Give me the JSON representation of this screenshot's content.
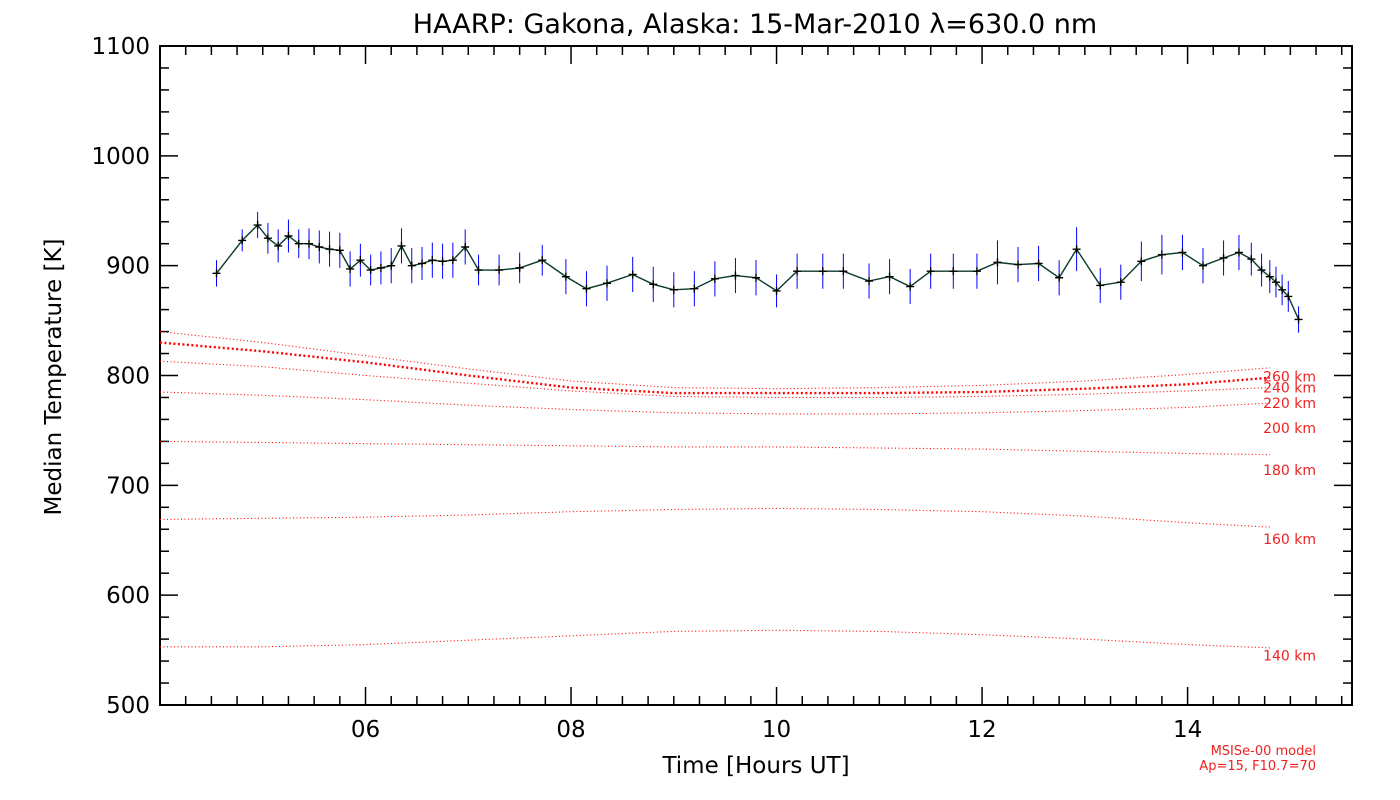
{
  "chart_data": {
    "type": "line",
    "title": "HAARP: Gakona,  Alaska: 15-Mar-2010 λ=630.0 nm",
    "xlabel": "Time [Hours UT]",
    "ylabel": "Median Temperature [K]",
    "xlim": [
      4.0,
      15.6
    ],
    "ylim": [
      500,
      1100
    ],
    "x_ticks": [
      6,
      8,
      10,
      12,
      14
    ],
    "x_tick_labels": [
      "06",
      "08",
      "10",
      "12",
      "14"
    ],
    "y_ticks": [
      500,
      600,
      700,
      800,
      900,
      1000,
      1100
    ],
    "y_tick_labels": [
      "500",
      "600",
      "700",
      "800",
      "900",
      "1000",
      "1100"
    ],
    "grid": false,
    "colors": {
      "observation_line": "#0a3a2a",
      "error_bars": "#0000ff",
      "markers": "#000000",
      "model_lines": "#ff0000",
      "model_text": "#ee2222"
    },
    "series": [
      {
        "kind": "observed",
        "x": [
          4.55,
          4.8,
          4.95,
          5.05,
          5.15,
          5.25,
          5.35,
          5.45,
          5.55,
          5.65,
          5.75,
          5.85,
          5.95,
          6.05,
          6.15,
          6.25,
          6.35,
          6.45,
          6.55,
          6.65,
          6.75,
          6.85,
          6.97,
          7.1,
          7.3,
          7.5,
          7.72,
          7.95,
          8.15,
          8.35,
          8.6,
          8.8,
          9.0,
          9.2,
          9.4,
          9.6,
          9.8,
          10.0,
          10.2,
          10.45,
          10.65,
          10.9,
          11.1,
          11.3,
          11.5,
          11.72,
          11.95,
          12.15,
          12.35,
          12.55,
          12.75,
          12.92,
          13.15,
          13.35,
          13.55,
          13.75,
          13.95,
          14.15,
          14.35,
          14.5,
          14.62,
          14.72,
          14.8,
          14.86,
          14.92,
          14.98,
          15.08
        ],
        "y": [
          893,
          923,
          937,
          925,
          918,
          927,
          920,
          920,
          917,
          915,
          914,
          897,
          905,
          896,
          898,
          900,
          918,
          900,
          902,
          905,
          904,
          905,
          917,
          896,
          896,
          898,
          905,
          890,
          879,
          884,
          892,
          883,
          878,
          879,
          888,
          891,
          889,
          877,
          895,
          895,
          895,
          886,
          890,
          881,
          895,
          895,
          895,
          903,
          901,
          902,
          889,
          915,
          882,
          885,
          904,
          910,
          912,
          900,
          907,
          912,
          906,
          896,
          890,
          885,
          878,
          872,
          851
        ],
        "error": [
          12,
          10,
          12,
          14,
          15,
          15,
          13,
          14,
          15,
          16,
          16,
          16,
          15,
          14,
          15,
          16,
          16,
          16,
          15,
          16,
          16,
          16,
          16,
          14,
          14,
          14,
          14,
          16,
          16,
          16,
          16,
          16,
          16,
          16,
          16,
          16,
          16,
          15,
          16,
          16,
          16,
          16,
          16,
          16,
          16,
          16,
          16,
          20,
          16,
          16,
          16,
          20,
          16,
          16,
          18,
          18,
          16,
          16,
          16,
          16,
          15,
          15,
          15,
          14,
          14,
          14,
          12
        ]
      },
      {
        "name": "260 km",
        "kind": "model",
        "emphasis": true,
        "x": [
          4.0,
          5.0,
          6.0,
          7.0,
          8.0,
          9.0,
          10.0,
          11.0,
          12.0,
          13.0,
          14.0,
          14.8
        ],
        "y": [
          830,
          822,
          812,
          800,
          789,
          784,
          784,
          784,
          785,
          788,
          792,
          798
        ]
      },
      {
        "name": "240 km",
        "kind": "model",
        "x": [
          4.0,
          5.0,
          6.0,
          7.0,
          8.0,
          9.0,
          10.0,
          11.0,
          12.0,
          13.0,
          14.0,
          14.8
        ],
        "y": [
          840,
          830,
          818,
          806,
          795,
          789,
          788,
          789,
          791,
          795,
          801,
          807
        ]
      },
      {
        "name": "220 km",
        "kind": "model",
        "x": [
          4.0,
          5.0,
          6.0,
          7.0,
          8.0,
          9.0,
          10.0,
          11.0,
          12.0,
          13.0,
          14.0,
          14.8
        ],
        "y": [
          813,
          808,
          800,
          793,
          786,
          781,
          780,
          780,
          781,
          783,
          786,
          789
        ]
      },
      {
        "name": "200 km",
        "kind": "model",
        "x": [
          4.0,
          5.0,
          6.0,
          7.0,
          8.0,
          9.0,
          10.0,
          11.0,
          12.0,
          13.0,
          14.0,
          14.8
        ],
        "y": [
          785,
          782,
          778,
          773,
          769,
          766,
          765,
          765,
          766,
          768,
          771,
          775
        ]
      },
      {
        "name": "180 km",
        "kind": "model",
        "x": [
          4.0,
          5.0,
          6.0,
          7.0,
          8.0,
          9.0,
          10.0,
          11.0,
          12.0,
          13.0,
          14.0,
          14.8
        ],
        "y": [
          740,
          739,
          738,
          737,
          736,
          735,
          735,
          734,
          733,
          731,
          729,
          728
        ]
      },
      {
        "name": "160 km",
        "kind": "model",
        "x": [
          4.0,
          5.0,
          6.0,
          7.0,
          8.0,
          9.0,
          10.0,
          11.0,
          12.0,
          13.0,
          14.0,
          14.8
        ],
        "y": [
          669,
          670,
          671,
          673,
          676,
          678,
          679,
          678,
          676,
          672,
          666,
          662
        ]
      },
      {
        "name": "140 km",
        "kind": "model",
        "x": [
          4.0,
          5.0,
          6.0,
          7.0,
          8.0,
          9.0,
          10.0,
          11.0,
          12.0,
          13.0,
          14.0,
          14.8
        ],
        "y": [
          553,
          553,
          555,
          559,
          563,
          567,
          568,
          567,
          564,
          560,
          555,
          552
        ]
      }
    ],
    "model_labels": [
      {
        "text": "260 km",
        "y": 799
      },
      {
        "text": "240 km",
        "y": 789
      },
      {
        "text": "220 km",
        "y": 775
      },
      {
        "text": "200 km",
        "y": 752
      },
      {
        "text": "180 km",
        "y": 714
      },
      {
        "text": "160 km",
        "y": 651
      },
      {
        "text": "140 km",
        "y": 545
      }
    ],
    "annotations": [
      "MSISe-00 model",
      "Ap=15, F10.7=70"
    ]
  }
}
